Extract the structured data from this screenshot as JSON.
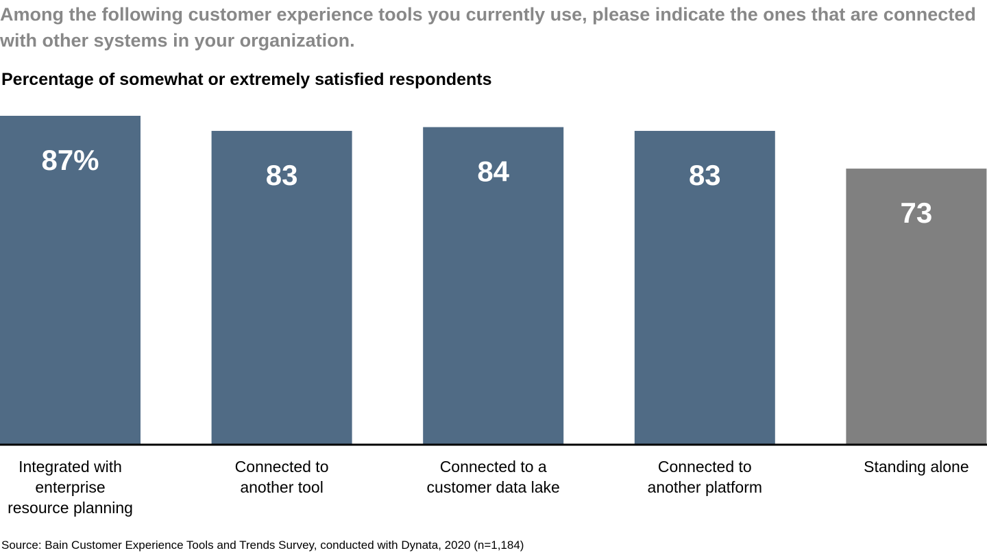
{
  "question": "Among the following customer experience tools you currently use, please indicate the ones that are connected with other systems in your organization.",
  "source": "Source: Bain Customer Experience Tools and Trends Survey, conducted with Dynata, 2020 (n=1,184)",
  "chart_data": {
    "type": "bar",
    "title": "Percentage of somewhat or extremely satisfied respondents",
    "categories": [
      [
        "Integrated with",
        "enterprise",
        "resource planning"
      ],
      [
        "Connected to",
        "another tool"
      ],
      [
        "Connected to a",
        "customer data lake"
      ],
      [
        "Connected to",
        "another platform"
      ],
      [
        "Standing alone"
      ]
    ],
    "values": [
      87,
      83,
      84,
      83,
      73
    ],
    "data_labels": [
      "87%",
      "83",
      "84",
      "83",
      "73"
    ],
    "colors": [
      "#506b85",
      "#506b85",
      "#506b85",
      "#506b85",
      "#808080"
    ],
    "ylim": [
      0,
      87
    ],
    "grid": false
  }
}
